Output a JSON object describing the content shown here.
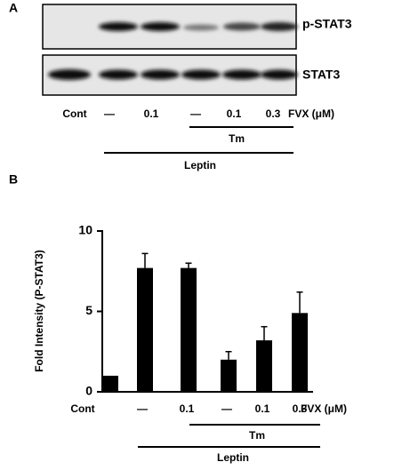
{
  "panel_a": {
    "label": "A",
    "blot_labels": [
      "p-STAT3",
      "STAT3"
    ],
    "lanes": [
      "Cont",
      "—",
      "0.1",
      "—",
      "0.1",
      "0.3"
    ],
    "dose_label": "FVX (μM)",
    "tm_label": "Tm",
    "leptin_label": "Leptin"
  },
  "panel_b": {
    "label": "B",
    "dose_label": "FVX (μM)",
    "tm_label": "Tm",
    "leptin_label": "Leptin"
  },
  "chart_data": {
    "type": "bar",
    "y_label": "Fold Intensity (P-STAT3)",
    "categories": [
      "Cont",
      "—",
      "0.1",
      "—",
      "0.1",
      "0.3"
    ],
    "values": [
      1,
      7.7,
      7.7,
      2.0,
      3.2,
      4.9
    ],
    "errors": [
      null,
      0.9,
      0.3,
      0.5,
      0.85,
      1.3
    ],
    "color": "#000000",
    "ylim": [
      0,
      10
    ],
    "yticks": [
      0,
      5,
      10
    ],
    "grid": false
  }
}
